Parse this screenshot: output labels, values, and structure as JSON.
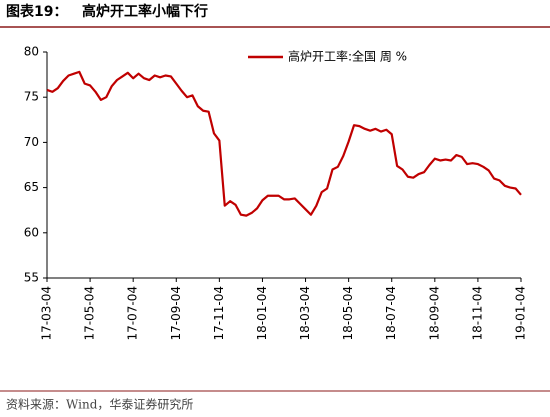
{
  "header": {
    "label": "图表19：",
    "title": "高炉开工率小幅下行"
  },
  "footer": {
    "source": "资料来源：Wind，华泰证券研究所"
  },
  "chart_data": {
    "type": "line",
    "categories": [
      "17-03-04",
      null,
      null,
      null,
      null,
      null,
      null,
      null,
      "17-05-04",
      null,
      null,
      null,
      null,
      null,
      null,
      null,
      "17-07-04",
      null,
      null,
      null,
      null,
      null,
      null,
      null,
      "17-09-04",
      null,
      null,
      null,
      null,
      null,
      null,
      null,
      "17-11-04",
      null,
      null,
      null,
      null,
      null,
      null,
      null,
      "18-01-04",
      null,
      null,
      null,
      null,
      null,
      null,
      null,
      "18-03-04",
      null,
      null,
      null,
      null,
      null,
      null,
      null,
      "18-05-04",
      null,
      null,
      null,
      null,
      null,
      null,
      null,
      "18-07-04",
      null,
      null,
      null,
      null,
      null,
      null,
      null,
      "18-09-04",
      null,
      null,
      null,
      null,
      null,
      null,
      null,
      "18-11-04",
      null,
      null,
      null,
      null,
      null,
      null,
      null,
      "19-01-04"
    ],
    "series": [
      {
        "name": "高炉开工率:全国 周 %",
        "color": "#c00000",
        "values": [
          75.8,
          75.6,
          76.0,
          76.8,
          77.4,
          77.6,
          77.8,
          76.5,
          76.3,
          75.6,
          74.7,
          75.0,
          76.2,
          76.9,
          77.3,
          77.7,
          77.1,
          77.6,
          77.1,
          76.9,
          77.4,
          77.2,
          77.4,
          77.3,
          76.5,
          75.7,
          75.0,
          75.2,
          74.0,
          73.5,
          73.4,
          71.0,
          70.2,
          63.0,
          63.5,
          63.1,
          62.0,
          61.9,
          62.2,
          62.7,
          63.6,
          64.1,
          64.1,
          64.1,
          63.7,
          63.7,
          63.8,
          63.2,
          62.6,
          62.0,
          63.0,
          64.5,
          64.9,
          67.0,
          67.3,
          68.5,
          70.1,
          71.9,
          71.8,
          71.5,
          71.3,
          71.5,
          71.2,
          71.4,
          70.9,
          67.4,
          67.0,
          66.2,
          66.1,
          66.5,
          66.7,
          67.5,
          68.2,
          68.0,
          68.1,
          68.0,
          68.6,
          68.4,
          67.6,
          67.7,
          67.6,
          67.3,
          66.9,
          66.0,
          65.8,
          65.2,
          65.0,
          64.9,
          64.2
        ]
      }
    ],
    "ylim": [
      55,
      80
    ],
    "yticks": [
      55,
      60,
      65,
      70,
      75,
      80
    ],
    "grid": false,
    "legend": "top"
  }
}
